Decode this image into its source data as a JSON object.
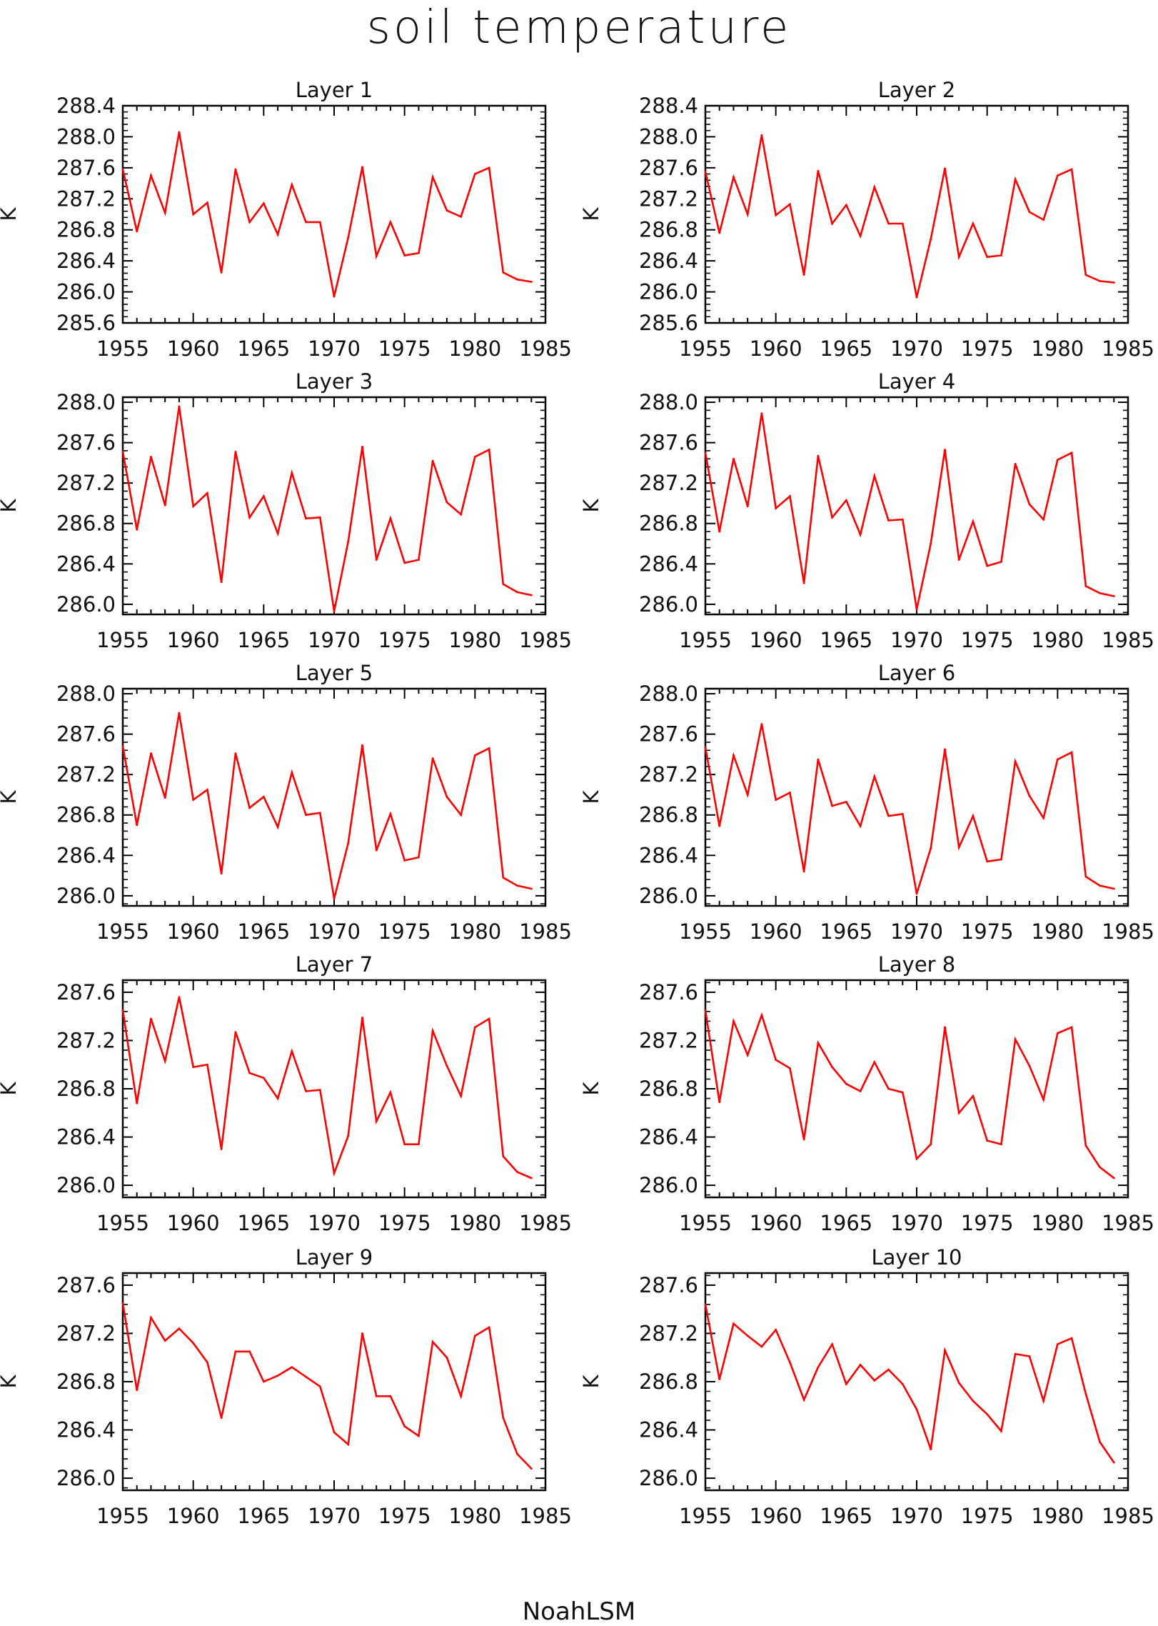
{
  "title": "soil temperature",
  "footer_text": "NoahLSM",
  "colors": {
    "line": "#ff0000",
    "axis": "#000000",
    "text": "#111111"
  },
  "chart_data": [
    {
      "type": "line",
      "title": "Layer 1",
      "ylabel": "K",
      "xlim": [
        1955,
        1985
      ],
      "ylim": [
        285.6,
        288.4
      ],
      "xticks": [
        1955,
        1960,
        1965,
        1970,
        1975,
        1980,
        1985
      ],
      "yticks": [
        285.6,
        286.0,
        286.4,
        286.8,
        287.2,
        287.6,
        288.0,
        288.4
      ],
      "x": [
        1955,
        1956,
        1957,
        1958,
        1959,
        1960,
        1961,
        1962,
        1963,
        1964,
        1965,
        1966,
        1967,
        1968,
        1969,
        1970,
        1971,
        1972,
        1973,
        1974,
        1975,
        1976,
        1977,
        1978,
        1979,
        1980,
        1981,
        1982,
        1983,
        1984
      ],
      "y": [
        287.58,
        286.78,
        287.5,
        287.02,
        288.06,
        287.0,
        287.15,
        286.25,
        287.58,
        286.9,
        287.14,
        286.74,
        287.38,
        286.9,
        286.9,
        285.94,
        286.7,
        287.61,
        286.46,
        286.9,
        286.47,
        286.5,
        287.48,
        287.05,
        286.97,
        287.52,
        287.6,
        286.25,
        286.16,
        286.13
      ]
    },
    {
      "type": "line",
      "title": "Layer 2",
      "ylabel": "K",
      "xlim": [
        1955,
        1985
      ],
      "ylim": [
        285.6,
        288.4
      ],
      "xticks": [
        1955,
        1960,
        1965,
        1970,
        1975,
        1980,
        1985
      ],
      "yticks": [
        285.6,
        286.0,
        286.4,
        286.8,
        287.2,
        287.6,
        288.0,
        288.4
      ],
      "x": [
        1955,
        1956,
        1957,
        1958,
        1959,
        1960,
        1961,
        1962,
        1963,
        1964,
        1965,
        1966,
        1967,
        1968,
        1969,
        1970,
        1971,
        1972,
        1973,
        1974,
        1975,
        1976,
        1977,
        1978,
        1979,
        1980,
        1981,
        1982,
        1983,
        1984
      ],
      "y": [
        287.55,
        286.76,
        287.48,
        287.0,
        288.02,
        286.99,
        287.13,
        286.22,
        287.56,
        286.88,
        287.12,
        286.72,
        287.35,
        286.88,
        286.88,
        285.93,
        286.68,
        287.59,
        286.45,
        286.88,
        286.45,
        286.47,
        287.45,
        287.03,
        286.93,
        287.5,
        287.58,
        286.22,
        286.14,
        286.12
      ]
    },
    {
      "type": "line",
      "title": "Layer 3",
      "ylabel": "K",
      "xlim": [
        1955,
        1985
      ],
      "ylim": [
        285.9,
        288.05
      ],
      "xticks": [
        1955,
        1960,
        1965,
        1970,
        1975,
        1980,
        1985
      ],
      "yticks": [
        286.0,
        286.4,
        286.8,
        287.2,
        287.6,
        288.0
      ],
      "x": [
        1955,
        1956,
        1957,
        1958,
        1959,
        1960,
        1961,
        1962,
        1963,
        1964,
        1965,
        1966,
        1967,
        1968,
        1969,
        1970,
        1971,
        1972,
        1973,
        1974,
        1975,
        1976,
        1977,
        1978,
        1979,
        1980,
        1981,
        1982,
        1983,
        1984
      ],
      "y": [
        287.51,
        286.74,
        287.46,
        286.98,
        287.96,
        286.97,
        287.1,
        286.22,
        287.51,
        286.86,
        287.07,
        286.7,
        287.3,
        286.85,
        286.86,
        285.93,
        286.62,
        287.56,
        286.44,
        286.85,
        286.41,
        286.44,
        287.42,
        287.01,
        286.89,
        287.46,
        287.53,
        286.2,
        286.12,
        286.09
      ]
    },
    {
      "type": "line",
      "title": "Layer 4",
      "ylabel": "K",
      "xlim": [
        1955,
        1985
      ],
      "ylim": [
        285.9,
        288.05
      ],
      "xticks": [
        1955,
        1960,
        1965,
        1970,
        1975,
        1980,
        1985
      ],
      "yticks": [
        286.0,
        286.4,
        286.8,
        287.2,
        287.6,
        288.0
      ],
      "x": [
        1955,
        1956,
        1957,
        1958,
        1959,
        1960,
        1961,
        1962,
        1963,
        1964,
        1965,
        1966,
        1967,
        1968,
        1969,
        1970,
        1971,
        1972,
        1973,
        1974,
        1975,
        1976,
        1977,
        1978,
        1979,
        1980,
        1981,
        1982,
        1983,
        1984
      ],
      "y": [
        287.5,
        286.72,
        287.44,
        286.97,
        287.89,
        286.95,
        287.07,
        286.21,
        287.47,
        286.86,
        287.03,
        286.69,
        287.27,
        286.83,
        286.84,
        285.95,
        286.6,
        287.53,
        286.44,
        286.82,
        286.38,
        286.42,
        287.39,
        286.99,
        286.84,
        287.43,
        287.5,
        286.18,
        286.11,
        286.08
      ]
    },
    {
      "type": "line",
      "title": "Layer 5",
      "ylabel": "K",
      "xlim": [
        1955,
        1985
      ],
      "ylim": [
        285.9,
        288.05
      ],
      "xticks": [
        1955,
        1960,
        1965,
        1970,
        1975,
        1980,
        1985
      ],
      "yticks": [
        286.0,
        286.4,
        286.8,
        287.2,
        287.6,
        288.0
      ],
      "x": [
        1955,
        1956,
        1957,
        1958,
        1959,
        1960,
        1961,
        1962,
        1963,
        1964,
        1965,
        1966,
        1967,
        1968,
        1969,
        1970,
        1971,
        1972,
        1973,
        1974,
        1975,
        1976,
        1977,
        1978,
        1979,
        1980,
        1981,
        1982,
        1983,
        1984
      ],
      "y": [
        287.48,
        286.7,
        287.41,
        286.97,
        287.81,
        286.95,
        287.05,
        286.22,
        287.41,
        286.87,
        286.98,
        286.68,
        287.22,
        286.8,
        286.82,
        285.97,
        286.52,
        287.49,
        286.45,
        286.81,
        286.35,
        286.38,
        287.36,
        286.98,
        286.8,
        287.39,
        287.46,
        286.18,
        286.1,
        286.07
      ]
    },
    {
      "type": "line",
      "title": "Layer 6",
      "ylabel": "K",
      "xlim": [
        1955,
        1985
      ],
      "ylim": [
        285.9,
        288.05
      ],
      "xticks": [
        1955,
        1960,
        1965,
        1970,
        1975,
        1980,
        1985
      ],
      "yticks": [
        286.0,
        286.4,
        286.8,
        287.2,
        287.6,
        288.0
      ],
      "x": [
        1955,
        1956,
        1957,
        1958,
        1959,
        1960,
        1961,
        1962,
        1963,
        1964,
        1965,
        1966,
        1967,
        1968,
        1969,
        1970,
        1971,
        1972,
        1973,
        1974,
        1975,
        1976,
        1977,
        1978,
        1979,
        1980,
        1981,
        1982,
        1983,
        1984
      ],
      "y": [
        287.47,
        286.69,
        287.39,
        287.0,
        287.7,
        286.95,
        287.02,
        286.24,
        287.35,
        286.89,
        286.93,
        286.69,
        287.18,
        286.79,
        286.81,
        286.02,
        286.47,
        287.45,
        286.48,
        286.79,
        286.34,
        286.36,
        287.33,
        286.99,
        286.77,
        287.35,
        287.42,
        286.19,
        286.1,
        286.07
      ]
    },
    {
      "type": "line",
      "title": "Layer 7",
      "ylabel": "K",
      "xlim": [
        1955,
        1985
      ],
      "ylim": [
        285.9,
        287.7
      ],
      "xticks": [
        1955,
        1960,
        1965,
        1970,
        1975,
        1980,
        1985
      ],
      "yticks": [
        286.0,
        286.4,
        286.8,
        287.2,
        287.6
      ],
      "x": [
        1955,
        1956,
        1957,
        1958,
        1959,
        1960,
        1961,
        1962,
        1963,
        1964,
        1965,
        1966,
        1967,
        1968,
        1969,
        1970,
        1971,
        1972,
        1973,
        1974,
        1975,
        1976,
        1977,
        1978,
        1979,
        1980,
        1981,
        1982,
        1983,
        1984
      ],
      "y": [
        287.45,
        286.68,
        287.38,
        287.03,
        287.56,
        286.98,
        287.0,
        286.3,
        287.27,
        286.93,
        286.89,
        286.72,
        287.11,
        286.78,
        286.79,
        286.1,
        286.41,
        287.39,
        286.53,
        286.77,
        286.34,
        286.34,
        287.28,
        286.99,
        286.74,
        287.31,
        287.38,
        286.24,
        286.11,
        286.06
      ]
    },
    {
      "type": "line",
      "title": "Layer 8",
      "ylabel": "K",
      "xlim": [
        1955,
        1985
      ],
      "ylim": [
        285.9,
        287.7
      ],
      "xticks": [
        1955,
        1960,
        1965,
        1970,
        1975,
        1980,
        1985
      ],
      "yticks": [
        286.0,
        286.4,
        286.8,
        287.2,
        287.6
      ],
      "x": [
        1955,
        1956,
        1957,
        1958,
        1959,
        1960,
        1961,
        1962,
        1963,
        1964,
        1965,
        1966,
        1967,
        1968,
        1969,
        1970,
        1971,
        1972,
        1973,
        1974,
        1975,
        1976,
        1977,
        1978,
        1979,
        1980,
        1981,
        1982,
        1983,
        1984
      ],
      "y": [
        287.45,
        286.69,
        287.36,
        287.08,
        287.41,
        287.04,
        286.97,
        286.38,
        287.18,
        286.98,
        286.84,
        286.78,
        287.02,
        286.8,
        286.77,
        286.22,
        286.34,
        287.31,
        286.6,
        286.74,
        286.37,
        286.34,
        287.21,
        286.99,
        286.71,
        287.26,
        287.31,
        286.33,
        286.15,
        286.06
      ]
    },
    {
      "type": "line",
      "title": "Layer 9",
      "ylabel": "K",
      "xlim": [
        1955,
        1985
      ],
      "ylim": [
        285.9,
        287.7
      ],
      "xticks": [
        1955,
        1960,
        1965,
        1970,
        1975,
        1980,
        1985
      ],
      "yticks": [
        286.0,
        286.4,
        286.8,
        287.2,
        287.6
      ],
      "x": [
        1955,
        1956,
        1957,
        1958,
        1959,
        1960,
        1961,
        1962,
        1963,
        1964,
        1965,
        1966,
        1967,
        1968,
        1969,
        1970,
        1971,
        1972,
        1973,
        1974,
        1975,
        1976,
        1977,
        1978,
        1979,
        1980,
        1981,
        1982,
        1983,
        1984
      ],
      "y": [
        287.45,
        286.73,
        287.33,
        287.14,
        287.24,
        287.12,
        286.96,
        286.5,
        287.05,
        287.05,
        286.8,
        286.85,
        286.92,
        286.84,
        286.76,
        286.38,
        286.28,
        287.2,
        286.68,
        286.68,
        286.43,
        286.35,
        287.13,
        287.0,
        286.68,
        287.18,
        287.25,
        286.5,
        286.2,
        286.08
      ]
    },
    {
      "type": "line",
      "title": "Layer 10",
      "ylabel": "K",
      "xlim": [
        1955,
        1985
      ],
      "ylim": [
        285.9,
        287.7
      ],
      "xticks": [
        1955,
        1960,
        1965,
        1970,
        1975,
        1980,
        1985
      ],
      "yticks": [
        286.0,
        286.4,
        286.8,
        287.2,
        287.6
      ],
      "x": [
        1955,
        1956,
        1957,
        1958,
        1959,
        1960,
        1961,
        1962,
        1963,
        1964,
        1965,
        1966,
        1967,
        1968,
        1969,
        1970,
        1971,
        1972,
        1973,
        1974,
        1975,
        1976,
        1977,
        1978,
        1979,
        1980,
        1981,
        1982,
        1983,
        1984
      ],
      "y": [
        287.44,
        286.82,
        287.28,
        287.18,
        287.09,
        287.23,
        286.96,
        286.65,
        286.92,
        287.11,
        286.78,
        286.94,
        286.81,
        286.9,
        286.78,
        286.57,
        286.24,
        287.06,
        286.79,
        286.64,
        286.53,
        286.39,
        287.03,
        287.01,
        286.64,
        287.11,
        287.16,
        286.7,
        286.3,
        286.13
      ]
    }
  ]
}
